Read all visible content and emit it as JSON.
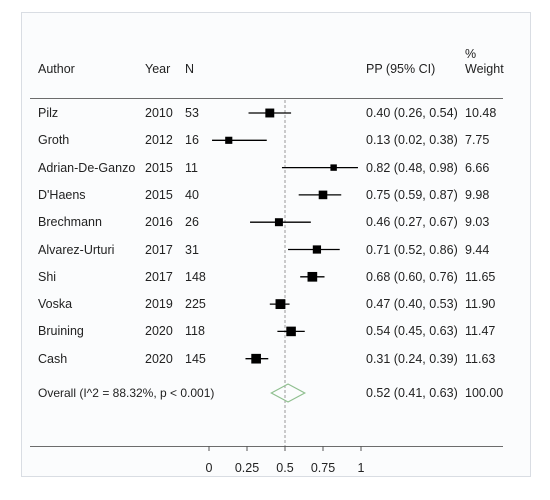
{
  "columns": {
    "author": "Author",
    "year": "Year",
    "n": "N",
    "pp": "PP (95% CI)",
    "weight_line1": "%",
    "weight_line2": "Weight"
  },
  "studies": [
    {
      "author": "Pilz",
      "year": "2010",
      "n": "53",
      "ci_text": "0.40 (0.26, 0.54)",
      "weight": "10.48"
    },
    {
      "author": "Groth",
      "year": "2012",
      "n": "16",
      "ci_text": "0.13 (0.02, 0.38)",
      "weight": "7.75"
    },
    {
      "author": "Adrian-De-Ganzo",
      "year": "2015",
      "n": "11",
      "ci_text": "0.82 (0.48, 0.98)",
      "weight": "6.66"
    },
    {
      "author": "D'Haens",
      "year": "2015",
      "n": "40",
      "ci_text": "0.75 (0.59, 0.87)",
      "weight": "9.98"
    },
    {
      "author": "Brechmann",
      "year": "2016",
      "n": "26",
      "ci_text": "0.46 (0.27, 0.67)",
      "weight": "9.03"
    },
    {
      "author": "Alvarez-Urturi",
      "year": "2017",
      "n": "31",
      "ci_text": "0.71 (0.52, 0.86)",
      "weight": "9.44"
    },
    {
      "author": "Shi",
      "year": "2017",
      "n": "148",
      "ci_text": "0.68 (0.60, 0.76)",
      "weight": "11.65"
    },
    {
      "author": "Voska",
      "year": "2019",
      "n": "225",
      "ci_text": "0.47 (0.40, 0.53)",
      "weight": "11.90"
    },
    {
      "author": "Bruining",
      "year": "2020",
      "n": "118",
      "ci_text": "0.54 (0.45, 0.63)",
      "weight": "11.47"
    },
    {
      "author": "Cash",
      "year": "2020",
      "n": "145",
      "ci_text": "0.31 (0.24, 0.39)",
      "weight": "11.63"
    }
  ],
  "overall": {
    "label": "Overall  (I^2 = 88.32%, p < 0.001)",
    "ci_text": "0.52 (0.41, 0.63)",
    "weight": "100.00"
  },
  "chart_data": {
    "type": "forest",
    "x_ticks": [
      0,
      0.25,
      0.5,
      0.75,
      1
    ],
    "x_tick_labels": [
      "0",
      "0.25",
      "0.5",
      "0.75",
      "1"
    ],
    "xlim": [
      -0.05,
      1.05
    ],
    "reference_line": 0.5,
    "points": [
      {
        "est": 0.4,
        "lo": 0.26,
        "hi": 0.54,
        "weight": 10.48
      },
      {
        "est": 0.13,
        "lo": 0.02,
        "hi": 0.38,
        "weight": 7.75
      },
      {
        "est": 0.82,
        "lo": 0.48,
        "hi": 0.98,
        "weight": 6.66
      },
      {
        "est": 0.75,
        "lo": 0.59,
        "hi": 0.87,
        "weight": 9.98
      },
      {
        "est": 0.46,
        "lo": 0.27,
        "hi": 0.67,
        "weight": 9.03
      },
      {
        "est": 0.71,
        "lo": 0.52,
        "hi": 0.86,
        "weight": 9.44
      },
      {
        "est": 0.68,
        "lo": 0.6,
        "hi": 0.76,
        "weight": 11.65
      },
      {
        "est": 0.47,
        "lo": 0.4,
        "hi": 0.53,
        "weight": 11.9
      },
      {
        "est": 0.54,
        "lo": 0.45,
        "hi": 0.63,
        "weight": 11.47
      },
      {
        "est": 0.31,
        "lo": 0.24,
        "hi": 0.39,
        "weight": 11.63
      }
    ],
    "overall": {
      "est": 0.52,
      "lo": 0.41,
      "hi": 0.63
    },
    "colors": {
      "marker": "#000000",
      "diamond": "#8fbf8f",
      "ref_line": "#999999"
    }
  }
}
